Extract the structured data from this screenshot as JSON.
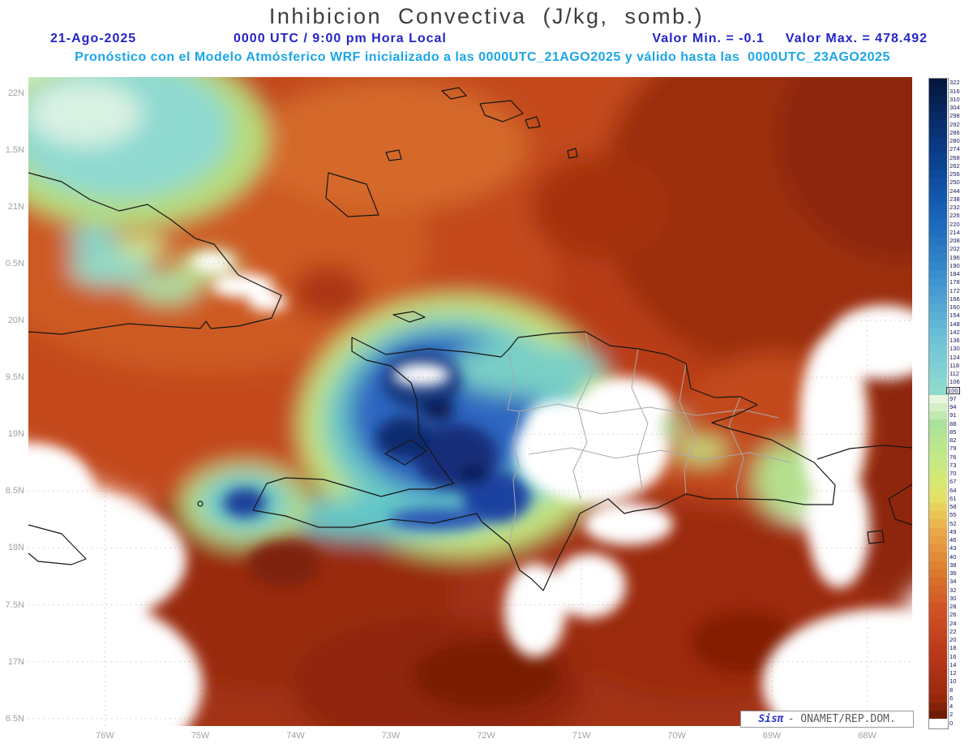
{
  "title": "Inhibicion Convectiva (J/kg, somb.)",
  "header": {
    "date": "21-Ago-2025",
    "time": "0000 UTC / 9:00 pm Hora Local",
    "min": "Valor Min. = -0.1",
    "max": "Valor Max. = 478.492",
    "forecast": "Pronóstico con el Modelo Atmósferico WRF inicializado a las 0000UTC_21AGO2025 y válido hasta las  0000UTC_23AGO2025"
  },
  "axes": {
    "lat_ticks": [
      "22N",
      "1.5N",
      "21N",
      "0.5N",
      "20N",
      "9.5N",
      "19N",
      "8.5N",
      "18N",
      "7.5N",
      "17N",
      "6.5N"
    ],
    "lon_ticks": [
      "76W",
      "75W",
      "74W",
      "73W",
      "72W",
      "71W",
      "70W",
      "69W",
      "68W"
    ]
  },
  "colorbar": {
    "labels": [
      322,
      316,
      310,
      304,
      298,
      292,
      286,
      280,
      274,
      268,
      262,
      256,
      250,
      244,
      238,
      232,
      226,
      220,
      214,
      208,
      202,
      196,
      190,
      184,
      178,
      172,
      166,
      160,
      154,
      148,
      142,
      136,
      130,
      124,
      118,
      112,
      106,
      100,
      97,
      94,
      91,
      88,
      85,
      82,
      79,
      76,
      73,
      70,
      67,
      64,
      61,
      58,
      55,
      52,
      49,
      46,
      43,
      40,
      38,
      36,
      34,
      32,
      30,
      28,
      26,
      24,
      22,
      20,
      18,
      16,
      14,
      12,
      10,
      8,
      6,
      4,
      2,
      0
    ],
    "boxed_label": 100,
    "gradient_stops": [
      [
        0,
        "#04173f"
      ],
      [
        5,
        "#082e6d"
      ],
      [
        10,
        "#0c4494"
      ],
      [
        14,
        "#1459ae"
      ],
      [
        18,
        "#206fbe"
      ],
      [
        22,
        "#3387c9"
      ],
      [
        26,
        "#4da2d2"
      ],
      [
        30,
        "#68bdd6"
      ],
      [
        34,
        "#7fd0d4"
      ],
      [
        37,
        "#8fdacd"
      ],
      [
        38,
        "#e9f6de"
      ],
      [
        41,
        "#abe29a"
      ],
      [
        45,
        "#c3e886"
      ],
      [
        48,
        "#d8e973"
      ],
      [
        50,
        "#e5df64"
      ],
      [
        52,
        "#eac355"
      ],
      [
        54,
        "#e9a847"
      ],
      [
        57,
        "#e18c38"
      ],
      [
        60,
        "#d86f2c"
      ],
      [
        63,
        "#d05524"
      ],
      [
        66,
        "#c64420"
      ],
      [
        69,
        "#b8371a"
      ],
      [
        72,
        "#a52d12"
      ],
      [
        74,
        "#97270c"
      ],
      [
        76,
        "#6f1c05"
      ],
      [
        77,
        "#ffffff"
      ]
    ]
  },
  "credit": {
    "brand": "Sisπ",
    "org": "- ONAMET/REP.DOM."
  },
  "colors": {
    "header_blue": "#2424c8",
    "header_cyan": "#1ba6e8",
    "title_gray": "#3d3d3d",
    "tick_gray": "#a2a2a2",
    "field_low_dark_red": "#8f2609",
    "field_mid_orange": "#c3491c",
    "field_high_blue": "#16377f",
    "field_cyan": "#6cc9c7"
  },
  "chart_data": {
    "type": "heatmap",
    "title": "Inhibicion Convectiva (J/kg, somb.)",
    "variable": "Convective Inhibition (CIN), shaded",
    "units": "J/kg",
    "value_min": -0.1,
    "value_max": 478.492,
    "model": "WRF",
    "init": "0000UTC_21AGO2025",
    "valid_until": "0000UTC_23AGO2025",
    "date": "21-Ago-2025",
    "time": "0000 UTC / 9:00 pm Hora Local",
    "x_axis_ticks_deg_w": [
      76,
      75,
      74,
      73,
      72,
      71,
      70,
      69,
      68
    ],
    "y_axis_ticks_deg_n": [
      22,
      21.5,
      21,
      20.5,
      20,
      19.5,
      19,
      18.5,
      18,
      17.5,
      17,
      16.5
    ],
    "grid": true,
    "legend_position": "right",
    "colorbar_levels": [
      322,
      316,
      310,
      304,
      298,
      292,
      286,
      280,
      274,
      268,
      262,
      256,
      250,
      244,
      238,
      232,
      226,
      220,
      214,
      208,
      202,
      196,
      190,
      184,
      178,
      172,
      166,
      160,
      154,
      148,
      142,
      136,
      130,
      124,
      118,
      112,
      106,
      100,
      97,
      94,
      91,
      88,
      85,
      82,
      79,
      76,
      73,
      70,
      67,
      64,
      61,
      58,
      55,
      52,
      49,
      46,
      43,
      40,
      38,
      36,
      34,
      32,
      30,
      28,
      26,
      24,
      22,
      20,
      18,
      16,
      14,
      12,
      10,
      8,
      6,
      4,
      2,
      0
    ],
    "notable_features": [
      {
        "region": "Interior Hispaniola (Haiti and SW Dominican Republic)",
        "approx_cin": "150-478, deep blue maxima ringed by cyan and yellow-green"
      },
      {
        "region": "Eastern Cuba hills",
        "approx_cin": "80-150, scattered cyan-green patches"
      },
      {
        "region": "Northwest corner of domain near 22N 76.5W",
        "approx_cin": "100-160, cyan patch with pale core"
      },
      {
        "region": "Small spot southwest of Haiti near 18.4N 74.5W",
        "approx_cin": "150-300, blue dot with cyan ring"
      },
      {
        "region": "Surrounding Atlantic and Caribbean waters",
        "approx_cin": "6-40, orange to dark brick red"
      },
      {
        "region": "Central Dominican Republic valleys, around Jamaica, SW/SE corners and right-edge band",
        "approx_cin": "0, unshaded white"
      }
    ]
  }
}
